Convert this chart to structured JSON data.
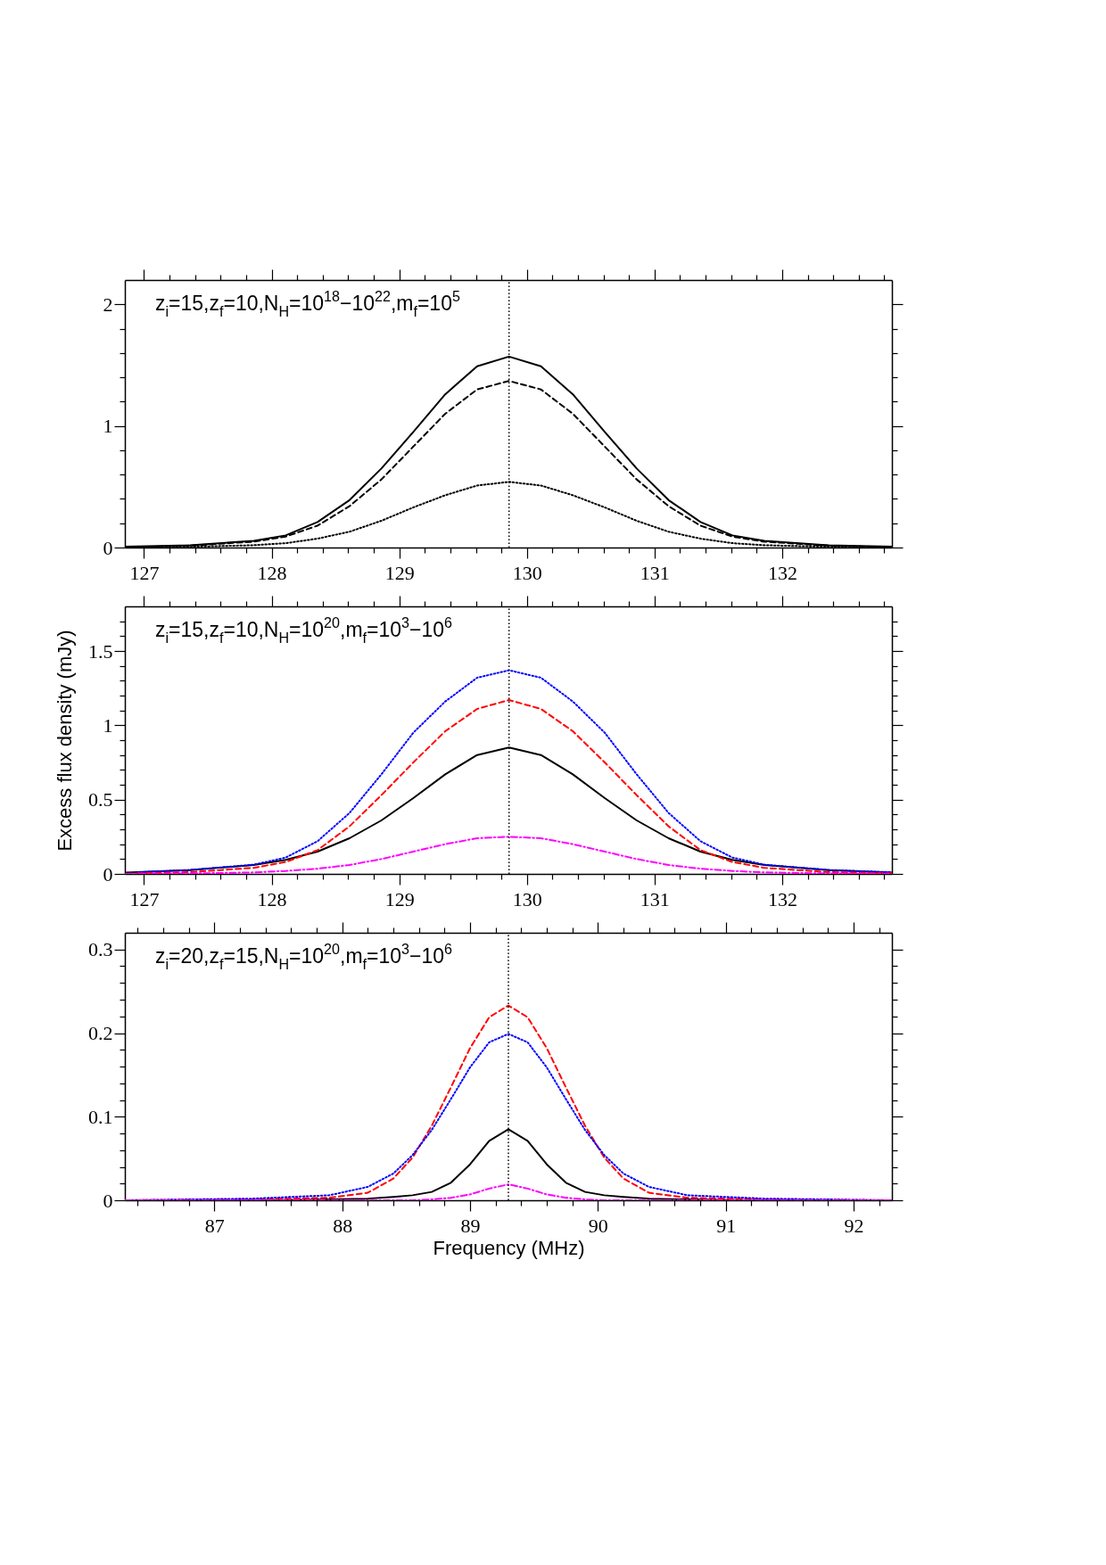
{
  "chart_data": [
    {
      "type": "line",
      "annotations": [
        "z$_{i}$=15,z$_{f}$=10,N$_{H}$=10$^{18}$−10$^{22}$,m$_{f}$=10$^{5}$"
      ],
      "x": [
        126.86,
        127.36,
        127.86,
        128.11,
        128.36,
        128.61,
        128.86,
        129.11,
        129.36,
        129.61,
        129.86,
        130.11,
        130.36,
        130.61,
        130.86,
        131.11,
        131.36,
        131.61,
        131.86,
        132.36,
        132.86
      ],
      "series": [
        {
          "color": "#000000",
          "line_style": "solid",
          "values": [
            0.008,
            0.019,
            0.055,
            0.1,
            0.21,
            0.39,
            0.65,
            0.95,
            1.26,
            1.49,
            1.57,
            1.49,
            1.26,
            0.95,
            0.65,
            0.39,
            0.21,
            0.1,
            0.055,
            0.019,
            0.008
          ]
        },
        {
          "color": "#000000",
          "line_style": "dashed",
          "x": [
            126.96,
            127.36,
            127.86,
            128.11,
            128.36,
            128.61,
            128.86,
            129.11,
            129.36,
            129.61,
            129.86,
            130.11,
            130.36,
            130.61,
            130.86,
            131.11,
            131.36,
            131.61,
            131.86,
            132.36,
            132.76
          ],
          "values": [
            0.004,
            0.016,
            0.048,
            0.09,
            0.18,
            0.34,
            0.56,
            0.83,
            1.1,
            1.3,
            1.37,
            1.3,
            1.1,
            0.83,
            0.56,
            0.34,
            0.18,
            0.09,
            0.048,
            0.016,
            0.004
          ]
        },
        {
          "color": "#000000",
          "line_style": "dotted",
          "values": [
            0.002,
            0.006,
            0.019,
            0.036,
            0.073,
            0.13,
            0.22,
            0.33,
            0.43,
            0.51,
            0.54,
            0.51,
            0.43,
            0.33,
            0.22,
            0.13,
            0.073,
            0.036,
            0.019,
            0.006,
            0.002
          ]
        }
      ],
      "xlim": [
        126.85,
        132.86
      ],
      "xticks": [
        127,
        {
          "value": 127.2,
          "label": null
        },
        {
          "value": 127.4,
          "label": null
        },
        {
          "value": 127.6,
          "label": null
        },
        {
          "value": 127.8,
          "label": null
        },
        128,
        {
          "value": 128.2,
          "label": null
        },
        {
          "value": 128.4,
          "label": null
        },
        {
          "value": 128.6,
          "label": null
        },
        {
          "value": 128.8,
          "label": null
        },
        129,
        {
          "value": 129.2,
          "label": null
        },
        {
          "value": 129.4,
          "label": null
        },
        {
          "value": 129.6,
          "label": null
        },
        {
          "value": 129.8,
          "label": null
        },
        130,
        {
          "value": 130.2,
          "label": null
        },
        {
          "value": 130.4,
          "label": null
        },
        {
          "value": 130.6,
          "label": null
        },
        {
          "value": 130.8,
          "label": null
        },
        131,
        {
          "value": 131.2,
          "label": null
        },
        {
          "value": 131.4,
          "label": null
        },
        {
          "value": 131.6,
          "label": null
        },
        {
          "value": 131.8,
          "label": null
        },
        132,
        {
          "value": 132.2,
          "label": null
        },
        {
          "value": 132.4,
          "label": null
        },
        {
          "value": 132.6,
          "label": null
        },
        {
          "value": 132.8,
          "label": null
        }
      ],
      "ylim": [
        0,
        2.2
      ],
      "yticks": [
        0,
        {
          "value": 0.2,
          "label": null
        },
        {
          "value": 0.4,
          "label": null
        },
        {
          "value": 0.6,
          "label": null
        },
        {
          "value": 0.8,
          "label": null
        },
        1,
        {
          "value": 1.2,
          "label": null
        },
        {
          "value": 1.4,
          "label": null
        },
        {
          "value": 1.6,
          "label": null
        },
        {
          "value": 1.8,
          "label": null
        },
        2
      ],
      "ref_lines": [
        {
          "axis": "x",
          "value": 129.86,
          "line_style": "dotted",
          "color": "#000000"
        }
      ]
    },
    {
      "type": "line",
      "ylabel": "Excess flux density (mJy)",
      "annotations": [
        "z$_{i}$=15,z$_{f}$=10,N$_{H}$=10$^{20}$,m$_{f}$=10$^{3}$−10$^{6}$"
      ],
      "x": [
        126.86,
        127.36,
        127.86,
        128.11,
        128.36,
        128.61,
        128.86,
        129.11,
        129.36,
        129.61,
        129.86,
        130.11,
        130.36,
        130.61,
        130.86,
        131.11,
        131.36,
        131.61,
        131.86,
        132.36,
        132.86
      ],
      "series": [
        {
          "color": "#0000ff",
          "line_style": "dotted",
          "x": [
            126.95,
            127.36,
            127.86,
            128.11,
            128.36,
            128.61,
            128.86,
            129.11,
            129.36,
            129.61,
            129.86,
            130.11,
            130.36,
            130.61,
            130.86,
            131.11,
            131.36,
            131.61,
            131.86,
            132.36,
            132.86
          ],
          "values": [
            0.011,
            0.027,
            0.062,
            0.11,
            0.22,
            0.41,
            0.67,
            0.95,
            1.16,
            1.32,
            1.37,
            1.32,
            1.16,
            0.95,
            0.67,
            0.41,
            0.22,
            0.11,
            0.062,
            0.027,
            0.011
          ]
        },
        {
          "color": "#ff0000",
          "line_style": "dashed",
          "x": [
            126.95,
            127.36,
            127.86,
            128.11,
            128.36,
            128.61,
            128.86,
            129.11,
            129.36,
            129.61,
            129.86,
            130.11,
            130.36,
            130.61,
            130.86,
            131.11,
            131.36,
            131.61,
            131.86,
            132.36,
            132.86
          ],
          "values": [
            0.004,
            0.012,
            0.041,
            0.08,
            0.16,
            0.32,
            0.53,
            0.75,
            0.96,
            1.11,
            1.17,
            1.11,
            0.96,
            0.75,
            0.53,
            0.32,
            0.16,
            0.08,
            0.041,
            0.012,
            0.004
          ]
        },
        {
          "color": "#000000",
          "line_style": "solid",
          "values": [
            0.009,
            0.026,
            0.06,
            0.094,
            0.15,
            0.24,
            0.36,
            0.51,
            0.67,
            0.8,
            0.85,
            0.8,
            0.67,
            0.51,
            0.36,
            0.24,
            0.15,
            0.094,
            0.06,
            0.026,
            0.009
          ]
        },
        {
          "color": "#ff00ff",
          "line_style": "dashdot",
          "values": [
            0.001,
            0.003,
            0.01,
            0.02,
            0.035,
            0.06,
            0.1,
            0.15,
            0.2,
            0.24,
            0.25,
            0.24,
            0.2,
            0.15,
            0.1,
            0.06,
            0.035,
            0.02,
            0.01,
            0.003,
            0.001
          ]
        }
      ],
      "xlim": [
        126.85,
        132.86
      ],
      "xticks": [
        127,
        {
          "value": 127.2,
          "label": null
        },
        {
          "value": 127.4,
          "label": null
        },
        {
          "value": 127.6,
          "label": null
        },
        {
          "value": 127.8,
          "label": null
        },
        128,
        {
          "value": 128.2,
          "label": null
        },
        {
          "value": 128.4,
          "label": null
        },
        {
          "value": 128.6,
          "label": null
        },
        {
          "value": 128.8,
          "label": null
        },
        129,
        {
          "value": 129.2,
          "label": null
        },
        {
          "value": 129.4,
          "label": null
        },
        {
          "value": 129.6,
          "label": null
        },
        {
          "value": 129.8,
          "label": null
        },
        130,
        {
          "value": 130.2,
          "label": null
        },
        {
          "value": 130.4,
          "label": null
        },
        {
          "value": 130.6,
          "label": null
        },
        {
          "value": 130.8,
          "label": null
        },
        131,
        {
          "value": 131.2,
          "label": null
        },
        {
          "value": 131.4,
          "label": null
        },
        {
          "value": 131.6,
          "label": null
        },
        {
          "value": 131.8,
          "label": null
        },
        132,
        {
          "value": 132.2,
          "label": null
        },
        {
          "value": 132.4,
          "label": null
        },
        {
          "value": 132.6,
          "label": null
        },
        {
          "value": 132.8,
          "label": null
        }
      ],
      "ylim": [
        0,
        1.8
      ],
      "yticks": [
        0,
        {
          "value": 0.1,
          "label": null
        },
        {
          "value": 0.2,
          "label": null
        },
        {
          "value": 0.3,
          "label": null
        },
        {
          "value": 0.4,
          "label": null
        },
        0.5,
        {
          "value": 0.6,
          "label": null
        },
        {
          "value": 0.7,
          "label": null
        },
        {
          "value": 0.8,
          "label": null
        },
        {
          "value": 0.9,
          "label": null
        },
        1,
        {
          "value": 1.1,
          "label": null
        },
        {
          "value": 1.2,
          "label": null
        },
        {
          "value": 1.3,
          "label": null
        },
        {
          "value": 1.4,
          "label": null
        },
        1.5,
        {
          "value": 1.6,
          "label": null
        },
        {
          "value": 1.7,
          "label": null
        }
      ],
      "ref_lines": [
        {
          "axis": "x",
          "value": 129.86,
          "line_style": "dotted",
          "color": "#000000"
        }
      ]
    },
    {
      "type": "line",
      "xlabel": "Frequency (MHz)",
      "annotations": [
        "z$_{i}$=20,z$_{f}$=15,N$_{H}$=10$^{20}$,m$_{f}$=10$^{3}$−10$^{6}$"
      ],
      "x": [
        86.3,
        87.3,
        87.9,
        88.2,
        88.4,
        88.55,
        88.7,
        88.85,
        89.0,
        89.15,
        89.3,
        89.45,
        89.6,
        89.75,
        89.9,
        90.05,
        90.2,
        90.4,
        90.7,
        91.3,
        92.3
      ],
      "series": [
        {
          "color": "#ff0000",
          "line_style": "dashed",
          "values": [
            0,
            0.001,
            0.003,
            0.009,
            0.026,
            0.051,
            0.089,
            0.135,
            0.182,
            0.219,
            0.233,
            0.219,
            0.182,
            0.135,
            0.089,
            0.051,
            0.026,
            0.009,
            0.003,
            0.001,
            0
          ]
        },
        {
          "color": "#0000ff",
          "line_style": "dotted",
          "values": [
            0,
            0.002,
            0.006,
            0.016,
            0.032,
            0.054,
            0.084,
            0.121,
            0.159,
            0.189,
            0.199,
            0.189,
            0.159,
            0.121,
            0.084,
            0.054,
            0.032,
            0.016,
            0.006,
            0.002,
            0
          ]
        },
        {
          "color": "#000000",
          "line_style": "solid",
          "values": [
            0,
            0,
            0.001,
            0.002,
            0.004,
            0.006,
            0.01,
            0.021,
            0.043,
            0.071,
            0.085,
            0.071,
            0.043,
            0.021,
            0.01,
            0.006,
            0.004,
            0.002,
            0.001,
            0,
            0
          ]
        },
        {
          "color": "#ff00ff",
          "line_style": "dashdot",
          "values": [
            0,
            0,
            0,
            0,
            0,
            0,
            0.001,
            0.003,
            0.007,
            0.014,
            0.019,
            0.014,
            0.007,
            0.003,
            0.001,
            0,
            0,
            0,
            0,
            0,
            0
          ]
        }
      ],
      "xlim": [
        86.3,
        92.3
      ],
      "xticks": [
        {
          "value": 86.4,
          "label": null
        },
        {
          "value": 86.6,
          "label": null
        },
        {
          "value": 86.8,
          "label": null
        },
        87,
        {
          "value": 87.2,
          "label": null
        },
        {
          "value": 87.4,
          "label": null
        },
        {
          "value": 87.6,
          "label": null
        },
        {
          "value": 87.8,
          "label": null
        },
        88,
        {
          "value": 88.2,
          "label": null
        },
        {
          "value": 88.4,
          "label": null
        },
        {
          "value": 88.6,
          "label": null
        },
        {
          "value": 88.8,
          "label": null
        },
        89,
        {
          "value": 89.2,
          "label": null
        },
        {
          "value": 89.4,
          "label": null
        },
        {
          "value": 89.6,
          "label": null
        },
        {
          "value": 89.8,
          "label": null
        },
        90,
        {
          "value": 90.2,
          "label": null
        },
        {
          "value": 90.4,
          "label": null
        },
        {
          "value": 90.6,
          "label": null
        },
        {
          "value": 90.8,
          "label": null
        },
        91,
        {
          "value": 91.2,
          "label": null
        },
        {
          "value": 91.4,
          "label": null
        },
        {
          "value": 91.6,
          "label": null
        },
        {
          "value": 91.8,
          "label": null
        },
        92,
        {
          "value": 92.2,
          "label": null
        }
      ],
      "ylim": [
        0,
        0.32
      ],
      "yticks": [
        0,
        {
          "value": 0.02,
          "label": null
        },
        {
          "value": 0.04,
          "label": null
        },
        {
          "value": 0.06,
          "label": null
        },
        {
          "value": 0.08,
          "label": null
        },
        0.1,
        {
          "value": 0.12,
          "label": null
        },
        {
          "value": 0.14,
          "label": null
        },
        {
          "value": 0.16,
          "label": null
        },
        {
          "value": 0.18,
          "label": null
        },
        0.2,
        {
          "value": 0.22,
          "label": null
        },
        {
          "value": 0.24,
          "label": null
        },
        {
          "value": 0.26,
          "label": null
        },
        {
          "value": 0.28,
          "label": null
        },
        0.3
      ],
      "ref_lines": [
        {
          "axis": "x",
          "value": 89.3,
          "line_style": "dotted",
          "color": "#000000"
        }
      ]
    }
  ]
}
